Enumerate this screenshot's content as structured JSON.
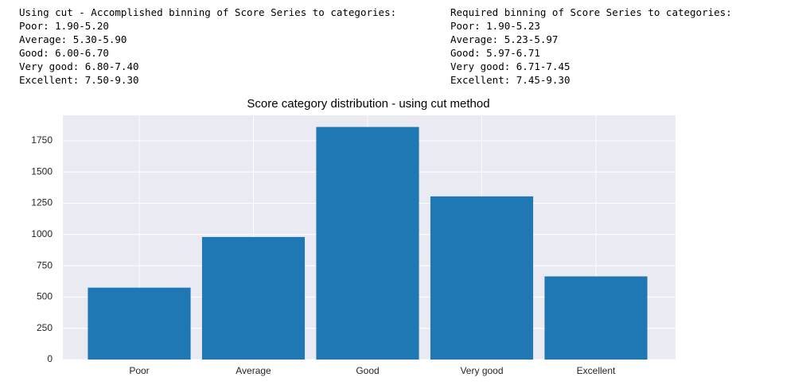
{
  "output_text": {
    "left": [
      "Using cut - Accomplished binning of Score Series to categories:",
      "Poor: 1.90-5.20",
      "Average: 5.30-5.90",
      "Good: 6.00-6.70",
      "Very good: 6.80-7.40",
      "Excellent: 7.50-9.30"
    ],
    "right": [
      "Required binning of Score Series to categories:",
      "Poor: 1.90-5.23",
      "Average: 5.23-5.97",
      "Good: 5.97-6.71",
      "Very good: 6.71-7.45",
      "Excellent: 7.45-9.30"
    ]
  },
  "chart_data": {
    "type": "bar",
    "title": "Score category distribution - using cut method",
    "categories": [
      "Poor",
      "Average",
      "Good",
      "Very good",
      "Excellent"
    ],
    "values": [
      575,
      980,
      1860,
      1305,
      665
    ],
    "color": "#1f77b4",
    "ylim": [
      0,
      1953
    ],
    "yticks": [
      0,
      250,
      500,
      750,
      1000,
      1250,
      1500,
      1750
    ],
    "grid": true
  }
}
